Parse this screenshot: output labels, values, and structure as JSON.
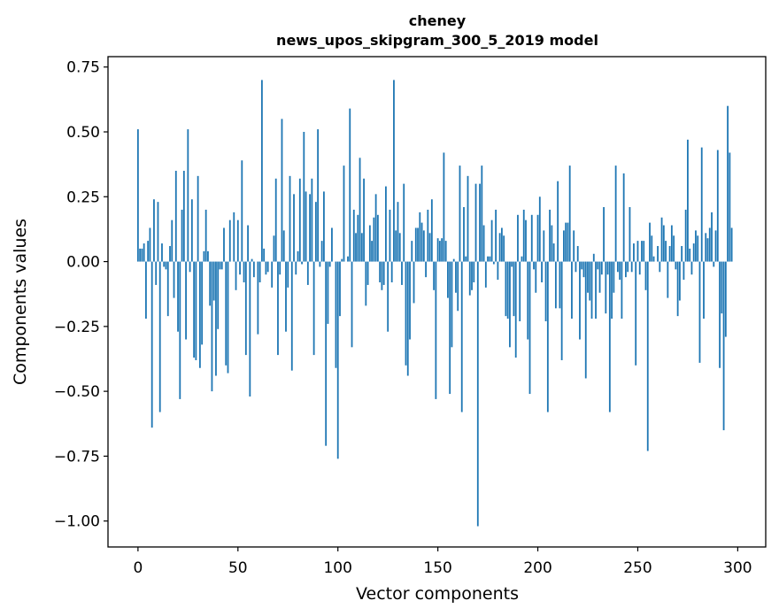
{
  "chart_data": {
    "type": "bar",
    "title": "cheney",
    "subtitle": "news_upos_skipgram_300_5_2019 model",
    "xlabel": "Vector components",
    "ylabel": "Components values",
    "xlim": [
      -15,
      314
    ],
    "ylim": [
      -1.1,
      0.79
    ],
    "xticks": [
      0,
      50,
      100,
      150,
      200,
      250,
      300
    ],
    "yticks": [
      0.75,
      0.5,
      0.25,
      0.0,
      -0.25,
      -0.5,
      -0.75,
      -1.0
    ],
    "ytick_labels": [
      "0.75",
      "0.50",
      "0.25",
      "0.00",
      "−0.25",
      "−0.50",
      "−0.75",
      "−1.00"
    ],
    "bar_color": "#1f77b4",
    "x_start": 0,
    "values": [
      0.51,
      0.05,
      0.05,
      0.07,
      -0.22,
      0.08,
      0.13,
      -0.64,
      0.24,
      -0.09,
      0.23,
      -0.58,
      0.07,
      -0.02,
      -0.03,
      -0.21,
      0.06,
      0.16,
      -0.14,
      0.35,
      -0.27,
      -0.53,
      0.2,
      0.35,
      -0.3,
      0.51,
      -0.04,
      0.24,
      -0.37,
      -0.38,
      0.33,
      -0.41,
      -0.32,
      0.04,
      0.2,
      0.04,
      -0.17,
      -0.5,
      -0.15,
      -0.44,
      -0.26,
      -0.03,
      -0.03,
      0.13,
      -0.4,
      -0.43,
      0.16,
      0.0,
      0.19,
      -0.11,
      0.16,
      -0.05,
      0.39,
      -0.08,
      -0.36,
      0.14,
      -0.52,
      0.01,
      -0.06,
      0.0,
      -0.28,
      -0.08,
      0.7,
      0.05,
      -0.05,
      -0.04,
      0.0,
      -0.1,
      0.1,
      0.32,
      -0.36,
      -0.05,
      0.55,
      0.12,
      -0.27,
      -0.1,
      0.33,
      -0.42,
      0.26,
      -0.05,
      0.04,
      0.32,
      -0.01,
      0.5,
      0.27,
      -0.09,
      0.26,
      0.32,
      -0.36,
      0.23,
      0.51,
      -0.02,
      0.08,
      0.27,
      -0.71,
      -0.24,
      -0.02,
      0.13,
      0.0,
      -0.41,
      -0.76,
      -0.21,
      0.01,
      0.37,
      0.0,
      0.02,
      0.59,
      -0.33,
      0.2,
      0.11,
      0.18,
      0.4,
      0.11,
      0.32,
      -0.17,
      -0.09,
      0.14,
      0.08,
      0.17,
      0.26,
      0.18,
      -0.08,
      -0.11,
      -0.09,
      0.29,
      -0.27,
      0.2,
      -0.08,
      0.7,
      0.12,
      0.23,
      0.11,
      -0.09,
      0.3,
      -0.4,
      -0.44,
      -0.3,
      0.08,
      -0.16,
      0.13,
      0.13,
      0.19,
      0.15,
      0.12,
      -0.06,
      0.2,
      0.11,
      0.24,
      -0.11,
      -0.53,
      0.09,
      0.08,
      0.09,
      0.42,
      0.08,
      -0.14,
      -0.51,
      -0.33,
      0.01,
      -0.12,
      -0.19,
      0.37,
      -0.58,
      0.21,
      0.02,
      0.33,
      -0.13,
      -0.11,
      -0.08,
      0.3,
      -1.02,
      0.3,
      0.37,
      0.14,
      -0.1,
      0.02,
      0.02,
      0.16,
      -0.01,
      0.2,
      -0.07,
      0.11,
      0.13,
      0.1,
      -0.21,
      -0.22,
      -0.33,
      -0.02,
      -0.21,
      -0.37,
      0.18,
      -0.23,
      0.02,
      0.2,
      0.16,
      -0.3,
      -0.51,
      0.18,
      -0.03,
      -0.12,
      0.18,
      0.25,
      -0.08,
      0.12,
      -0.23,
      -0.58,
      0.2,
      0.14,
      0.07,
      -0.18,
      0.31,
      -0.18,
      -0.38,
      0.12,
      0.15,
      0.15,
      0.37,
      -0.22,
      0.12,
      -0.04,
      0.06,
      -0.3,
      -0.03,
      -0.06,
      -0.45,
      -0.12,
      -0.15,
      -0.22,
      0.03,
      -0.22,
      -0.03,
      -0.12,
      -0.05,
      0.21,
      -0.2,
      -0.05,
      -0.58,
      -0.22,
      -0.12,
      0.37,
      -0.04,
      -0.07,
      -0.22,
      0.34,
      -0.06,
      -0.04,
      0.21,
      -0.04,
      0.07,
      -0.4,
      0.08,
      -0.05,
      0.08,
      0.08,
      -0.11,
      -0.73,
      0.15,
      0.1,
      0.02,
      0.0,
      0.06,
      -0.04,
      0.17,
      0.14,
      0.08,
      -0.14,
      0.06,
      0.14,
      0.1,
      -0.03,
      -0.21,
      -0.15,
      0.06,
      -0.07,
      0.2,
      0.47,
      0.05,
      -0.05,
      0.07,
      0.12,
      0.1,
      -0.39,
      0.44,
      -0.22,
      0.11,
      0.09,
      0.13,
      0.19,
      -0.02,
      0.12,
      0.43,
      -0.41,
      -0.2,
      -0.65,
      -0.29,
      0.6,
      0.42,
      0.13
    ]
  }
}
